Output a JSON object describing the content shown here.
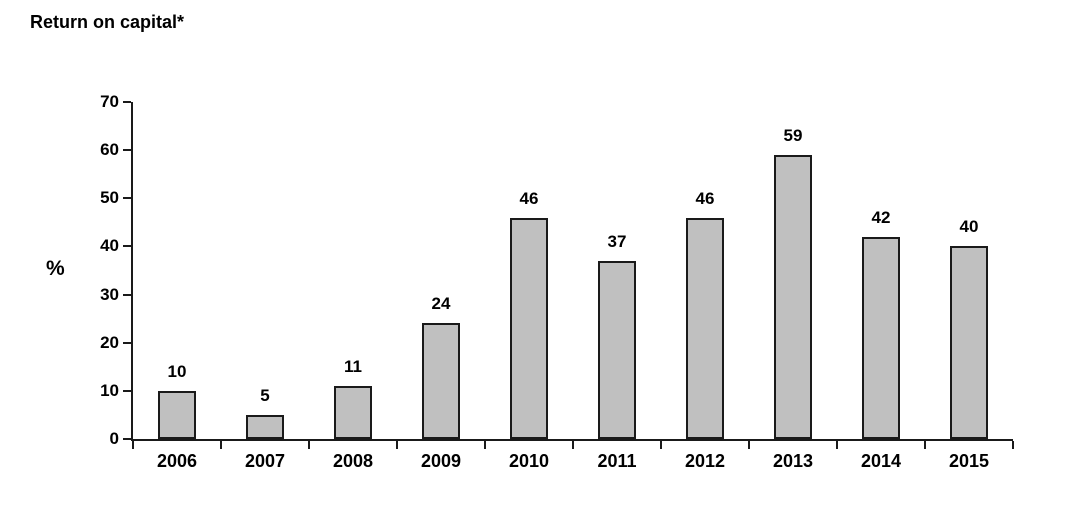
{
  "chart_data": {
    "type": "bar",
    "title": "Return on capital*",
    "ylabel": "%",
    "xlabel": "",
    "categories": [
      "2006",
      "2007",
      "2008",
      "2009",
      "2010",
      "2011",
      "2012",
      "2013",
      "2014",
      "2015"
    ],
    "values": [
      10,
      5,
      11,
      24,
      46,
      37,
      46,
      59,
      42,
      40
    ],
    "ylim": [
      0,
      70
    ],
    "ytick_step": 10,
    "grid": false,
    "legend_position": "none",
    "bar_fill_color": "#c0c0c0",
    "bar_border_color": "#1a1a1a",
    "axis_color": "#1a1a1a",
    "label_color": "#000000"
  }
}
